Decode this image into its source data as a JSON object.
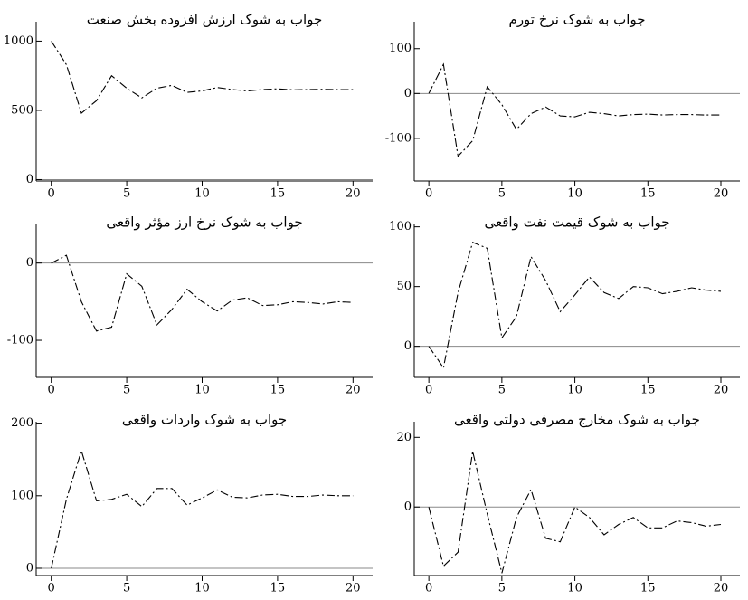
{
  "chart_data": [
    {
      "type": "line",
      "title": "جواب به شوک ارزش افزوده بخش صنعت",
      "x": [
        0,
        1,
        2,
        3,
        4,
        5,
        6,
        7,
        8,
        9,
        10,
        11,
        12,
        13,
        14,
        15,
        16,
        17,
        18,
        19,
        20
      ],
      "values": [
        1000,
        830,
        480,
        570,
        750,
        660,
        590,
        660,
        680,
        630,
        640,
        665,
        650,
        640,
        650,
        655,
        648,
        650,
        652,
        650,
        650
      ],
      "color": "#000000",
      "xlim": [
        -1,
        21.3
      ],
      "xticks": [
        0,
        5,
        10,
        15,
        20
      ],
      "ylim": [
        -10,
        1140
      ],
      "yticks": [
        0,
        500,
        1000
      ]
    },
    {
      "type": "line",
      "title": "جواب به شوک نرخ تورم",
      "x": [
        0,
        1,
        2,
        3,
        4,
        5,
        6,
        7,
        8,
        9,
        10,
        11,
        12,
        13,
        14,
        15,
        16,
        17,
        18,
        19,
        20
      ],
      "values": [
        0,
        65,
        -140,
        -105,
        15,
        -25,
        -80,
        -45,
        -30,
        -50,
        -52,
        -42,
        -45,
        -50,
        -47,
        -46,
        -48,
        -47,
        -47,
        -48,
        -48
      ],
      "color": "#000000",
      "xlim": [
        -1,
        21.3
      ],
      "xticks": [
        0,
        5,
        10,
        15,
        20
      ],
      "ylim": [
        -195,
        160
      ],
      "yticks": [
        -100,
        0,
        100
      ]
    },
    {
      "type": "line",
      "title": "جواب به شوک نرخ ارز مؤثر واقعی",
      "x": [
        0,
        1,
        2,
        3,
        4,
        5,
        6,
        7,
        8,
        9,
        10,
        11,
        12,
        13,
        14,
        15,
        16,
        17,
        18,
        19,
        20
      ],
      "values": [
        0,
        10,
        -50,
        -88,
        -83,
        -14,
        -30,
        -80,
        -60,
        -34,
        -50,
        -62,
        -48,
        -45,
        -55,
        -54,
        -50,
        -51,
        -53,
        -50,
        -51
      ],
      "color": "#000000",
      "xlim": [
        -1,
        21.3
      ],
      "xticks": [
        0,
        5,
        10,
        15,
        20
      ],
      "ylim": [
        -148,
        50
      ],
      "yticks": [
        -100,
        0
      ]
    },
    {
      "type": "line",
      "title": "جواب به شوک قیمت نفت واقعی",
      "x": [
        0,
        1,
        2,
        3,
        4,
        5,
        6,
        7,
        8,
        9,
        10,
        11,
        12,
        13,
        14,
        15,
        16,
        17,
        18,
        19,
        20
      ],
      "values": [
        0,
        -18,
        45,
        87,
        82,
        7,
        25,
        75,
        55,
        29,
        43,
        58,
        45,
        40,
        50,
        49,
        44,
        46,
        49,
        47,
        46
      ],
      "color": "#000000",
      "xlim": [
        -1,
        21.3
      ],
      "xticks": [
        0,
        5,
        10,
        15,
        20
      ],
      "ylim": [
        -26,
        102
      ],
      "yticks": [
        0,
        50,
        100
      ]
    },
    {
      "type": "line",
      "title": "جواب به شوک واردات واقعی",
      "x": [
        0,
        1,
        2,
        3,
        4,
        5,
        6,
        7,
        8,
        9,
        10,
        11,
        12,
        13,
        14,
        15,
        16,
        17,
        18,
        19,
        20
      ],
      "values": [
        0,
        95,
        162,
        93,
        95,
        102,
        85,
        110,
        110,
        87,
        97,
        108,
        98,
        97,
        101,
        102,
        99,
        99,
        101,
        100,
        100
      ],
      "color": "#000000",
      "xlim": [
        -1,
        21.3
      ],
      "xticks": [
        0,
        5,
        10,
        15,
        20
      ],
      "ylim": [
        -10,
        202
      ],
      "yticks": [
        0,
        100,
        200
      ]
    },
    {
      "type": "line",
      "title": "جواب به شوک مخارج مصرفی دولتی واقعی",
      "x": [
        0,
        1,
        2,
        3,
        4,
        5,
        6,
        7,
        8,
        9,
        10,
        11,
        12,
        13,
        14,
        15,
        16,
        17,
        18,
        19,
        20
      ],
      "values": [
        0,
        -17,
        -13,
        16,
        -2,
        -19,
        -3,
        5,
        -9,
        -10,
        0,
        -3,
        -8,
        -5,
        -3,
        -6,
        -6,
        -4,
        -4.5,
        -5.5,
        -5
      ],
      "color": "#000000",
      "xlim": [
        -1,
        21.3
      ],
      "xticks": [
        0,
        5,
        10,
        15,
        20
      ],
      "ylim": [
        -19.7,
        24.5
      ],
      "yticks": [
        0,
        20
      ]
    }
  ]
}
